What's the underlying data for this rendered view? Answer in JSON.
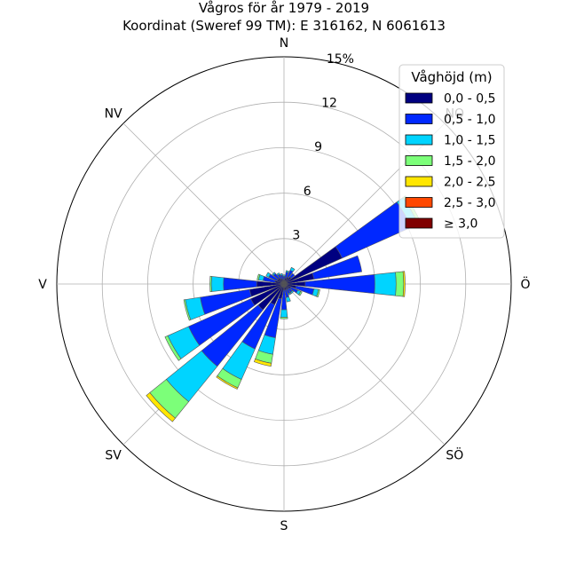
{
  "chart_data": {
    "type": "wind-rose",
    "title": "Vågros för år 1979 - 2019",
    "subtitle": "Koordinat (Sweref 99 TM): E 316162, N 6061613",
    "radial_max": 15,
    "radial_ticks": [
      "3",
      "6",
      "9",
      "12",
      "15%"
    ],
    "radial_tick_values": [
      3,
      6,
      9,
      12,
      15
    ],
    "direction_labels": [
      {
        "label": "N",
        "angle": 0
      },
      {
        "label": "NO",
        "angle": 45
      },
      {
        "label": "Ö",
        "angle": 90
      },
      {
        "label": "SÖ",
        "angle": 135
      },
      {
        "label": "S",
        "angle": 180
      },
      {
        "label": "SV",
        "angle": 225
      },
      {
        "label": "V",
        "angle": 270
      },
      {
        "label": "NV",
        "angle": 315
      }
    ],
    "sector_directions": [
      0,
      15,
      30,
      45,
      60,
      75,
      90,
      105,
      120,
      135,
      150,
      165,
      180,
      195,
      210,
      225,
      240,
      255,
      270,
      285,
      300,
      315,
      330,
      345
    ],
    "sector_width_deg": 12,
    "legend": {
      "title": "Våghöjd (m)",
      "placement": "upper-right",
      "entries": [
        "0,0 - 0,5",
        "0,5 - 1,0",
        "1,0 - 1,5",
        "1,5 - 2,0",
        "2,0 - 2,5",
        "2,5 - 3,0",
        "≥ 3,0"
      ]
    },
    "colors": [
      "#000080",
      "#0028ff",
      "#00d4ff",
      "#7cff79",
      "#ffe600",
      "#ff4800",
      "#800000"
    ],
    "series": [
      {
        "name": "0,0 - 0,5",
        "values": [
          0.3,
          0.4,
          0.5,
          0.6,
          4.2,
          2.0,
          1.4,
          0.8,
          0.5,
          0.4,
          0.4,
          0.4,
          0.4,
          1.0,
          1.5,
          2.2,
          2.4,
          2.3,
          1.8,
          0.6,
          0.5,
          0.5,
          0.4,
          0.3
        ]
      },
      {
        "name": "0,5 - 1,0",
        "values": [
          0.2,
          0.4,
          0.5,
          0.3,
          5.0,
          3.2,
          4.6,
          1.2,
          0.5,
          0.3,
          0.3,
          0.5,
          1.3,
          2.6,
          3.2,
          4.8,
          4.5,
          3.3,
          2.2,
          0.8,
          0.6,
          0.4,
          0.3,
          0.3
        ]
      },
      {
        "name": "1,0 - 1,5",
        "values": [
          0.1,
          0.1,
          0.2,
          0.0,
          0.5,
          0.0,
          1.4,
          0.3,
          0.2,
          0.1,
          0.1,
          0.3,
          0.5,
          1.1,
          2.2,
          3.0,
          1.5,
          1.0,
          0.8,
          0.3,
          0.2,
          0.1,
          0.1,
          0.1
        ]
      },
      {
        "name": "1,5 - 2,0",
        "values": [
          0.0,
          0.0,
          0.0,
          0.0,
          0.2,
          0.0,
          0.5,
          0.1,
          0.1,
          0.0,
          0.0,
          0.0,
          0.1,
          0.6,
          0.6,
          1.4,
          0.2,
          0.1,
          0.1,
          0.1,
          0.0,
          0.0,
          0.0,
          0.0
        ]
      },
      {
        "name": "2,0 - 2,5",
        "values": [
          0.0,
          0.0,
          0.0,
          0.0,
          0.0,
          0.0,
          0.1,
          0.0,
          0.0,
          0.0,
          0.0,
          0.0,
          0.0,
          0.2,
          0.1,
          0.3,
          0.0,
          0.0,
          0.0,
          0.0,
          0.0,
          0.0,
          0.0,
          0.0
        ]
      },
      {
        "name": "2,5 - 3,0",
        "values": [
          0,
          0,
          0,
          0,
          0,
          0,
          0,
          0,
          0,
          0,
          0,
          0,
          0,
          0,
          0,
          0,
          0,
          0,
          0,
          0,
          0,
          0,
          0,
          0
        ]
      },
      {
        "name": "≥ 3,0",
        "values": [
          0,
          0,
          0,
          0,
          0,
          0,
          0,
          0,
          0,
          0,
          0,
          0,
          0,
          0,
          0,
          0,
          0,
          0,
          0,
          0,
          0,
          0,
          0,
          0
        ]
      }
    ]
  }
}
